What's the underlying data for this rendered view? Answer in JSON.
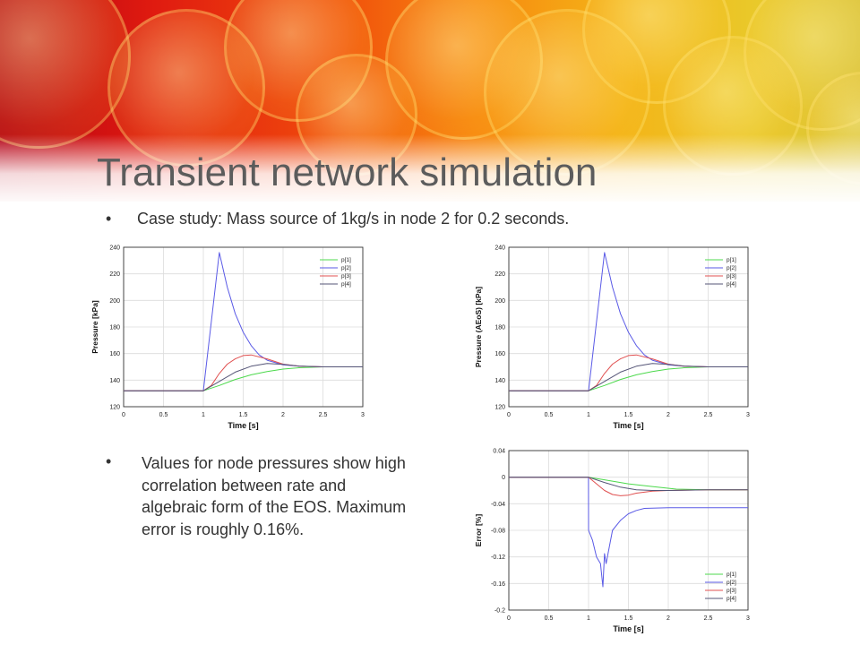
{
  "slide": {
    "title": "Transient network simulation",
    "bullet_char": "•",
    "bullet1": "Case study: Mass source of 1kg/s in node 2 for 0.2 seconds.",
    "bullet2": "Values for node pressures show high correlation between rate and algebraic form of the EOS. Maximum error is roughly 0.16%."
  },
  "series_colors": {
    "p[1]": "#4cd94c",
    "p[2]": "#5a5ae6",
    "p[3]": "#e05050",
    "p[4]": "#555577"
  },
  "chart_data": [
    {
      "type": "line",
      "xlabel": "Time  [s]",
      "ylabel": "Pressure [kPa]",
      "xlim": [
        0,
        3
      ],
      "ylim": [
        120,
        240
      ],
      "xticks": [
        "0",
        "0.5",
        "1",
        "1.5",
        "2",
        "2.5",
        "3"
      ],
      "yticks": [
        "120",
        "140",
        "160",
        "180",
        "200",
        "220",
        "240"
      ],
      "grid": true,
      "legend": "top-right",
      "series": [
        {
          "name": "p[1]",
          "x": [
            0,
            1.0,
            1.2,
            1.4,
            1.6,
            1.8,
            2.0,
            2.2,
            2.5,
            3.0
          ],
          "y": [
            132,
            132,
            136,
            140.5,
            144,
            146.5,
            148.3,
            149.3,
            150,
            150
          ]
        },
        {
          "name": "p[2]",
          "x": [
            0,
            1.0,
            1.2,
            1.3,
            1.4,
            1.5,
            1.6,
            1.7,
            1.8,
            2.0,
            2.2,
            2.5,
            3.0
          ],
          "y": [
            132,
            132,
            236,
            210,
            190,
            176,
            166,
            159,
            155,
            151.5,
            150.5,
            150,
            150
          ]
        },
        {
          "name": "p[3]",
          "x": [
            0,
            1.0,
            1.1,
            1.2,
            1.3,
            1.4,
            1.5,
            1.6,
            1.8,
            2.0,
            2.2,
            2.5,
            3.0
          ],
          "y": [
            132,
            132,
            136,
            145,
            152,
            156,
            158.5,
            159,
            156,
            152,
            150.5,
            150,
            150
          ]
        },
        {
          "name": "p[4]",
          "x": [
            0,
            1.0,
            1.2,
            1.4,
            1.6,
            1.8,
            2.0,
            2.2,
            2.5,
            3.0
          ],
          "y": [
            132,
            132,
            139,
            146,
            150.5,
            152.5,
            151.8,
            150.6,
            150,
            150
          ]
        }
      ]
    },
    {
      "type": "line",
      "xlabel": "Time  [s]",
      "ylabel": "Pressure (AEoS) [kPa]",
      "xlim": [
        0,
        3
      ],
      "ylim": [
        120,
        240
      ],
      "xticks": [
        "0",
        "0.5",
        "1",
        "1.5",
        "2",
        "2.5",
        "3"
      ],
      "yticks": [
        "120",
        "140",
        "160",
        "180",
        "200",
        "220",
        "240"
      ],
      "grid": true,
      "legend": "top-right",
      "series": [
        {
          "name": "p[1]",
          "x": [
            0,
            1.0,
            1.2,
            1.4,
            1.6,
            1.8,
            2.0,
            2.2,
            2.5,
            3.0
          ],
          "y": [
            132,
            132,
            136,
            140.5,
            144,
            146.5,
            148.3,
            149.3,
            150,
            150
          ]
        },
        {
          "name": "p[2]",
          "x": [
            0,
            1.0,
            1.2,
            1.3,
            1.4,
            1.5,
            1.6,
            1.7,
            1.8,
            2.0,
            2.2,
            2.5,
            3.0
          ],
          "y": [
            132,
            132,
            236,
            210,
            190,
            176,
            166,
            159,
            155,
            151.5,
            150.5,
            150,
            150
          ]
        },
        {
          "name": "p[3]",
          "x": [
            0,
            1.0,
            1.1,
            1.2,
            1.3,
            1.4,
            1.5,
            1.6,
            1.8,
            2.0,
            2.2,
            2.5,
            3.0
          ],
          "y": [
            132,
            132,
            136,
            145,
            152,
            156,
            158.5,
            159,
            156,
            152,
            150.5,
            150,
            150
          ]
        },
        {
          "name": "p[4]",
          "x": [
            0,
            1.0,
            1.2,
            1.4,
            1.6,
            1.8,
            2.0,
            2.2,
            2.5,
            3.0
          ],
          "y": [
            132,
            132,
            139,
            146,
            150.5,
            152.5,
            151.8,
            150.6,
            150,
            150
          ]
        }
      ]
    },
    {
      "type": "line",
      "xlabel": "Time  [s]",
      "ylabel": "Error [%]",
      "xlim": [
        0,
        3
      ],
      "ylim": [
        -0.2,
        0.04
      ],
      "xticks": [
        "0",
        "0.5",
        "1",
        "1.5",
        "2",
        "2.5",
        "3"
      ],
      "yticks": [
        "-0.2",
        "-0.16",
        "-0.12",
        "-0.08",
        "-0.04",
        "0",
        "0.04"
      ],
      "grid": true,
      "legend": "bottom-right",
      "series": [
        {
          "name": "p[1]",
          "x": [
            0,
            1.0,
            1.2,
            1.5,
            1.8,
            2.1,
            2.5,
            3.0
          ],
          "y": [
            0,
            0,
            -0.004,
            -0.01,
            -0.014,
            -0.018,
            -0.019,
            -0.019
          ]
        },
        {
          "name": "p[2]",
          "x": [
            0,
            0.999,
            1.0,
            1.05,
            1.1,
            1.15,
            1.18,
            1.2,
            1.22,
            1.3,
            1.4,
            1.5,
            1.6,
            1.7,
            2.0,
            2.5,
            3.0
          ],
          "y": [
            0,
            0,
            -0.08,
            -0.095,
            -0.12,
            -0.13,
            -0.165,
            -0.115,
            -0.13,
            -0.08,
            -0.065,
            -0.055,
            -0.05,
            -0.047,
            -0.046,
            -0.046,
            -0.046
          ]
        },
        {
          "name": "p[3]",
          "x": [
            0,
            1.0,
            1.1,
            1.2,
            1.3,
            1.4,
            1.5,
            1.6,
            1.8,
            2.0,
            2.5,
            3.0
          ],
          "y": [
            0,
            0,
            -0.01,
            -0.02,
            -0.026,
            -0.028,
            -0.027,
            -0.024,
            -0.021,
            -0.02,
            -0.019,
            -0.019
          ]
        },
        {
          "name": "p[4]",
          "x": [
            0,
            1.0,
            1.2,
            1.4,
            1.6,
            1.8,
            2.0,
            2.5,
            3.0
          ],
          "y": [
            0,
            0,
            -0.008,
            -0.015,
            -0.019,
            -0.02,
            -0.02,
            -0.019,
            -0.019
          ]
        }
      ]
    }
  ]
}
